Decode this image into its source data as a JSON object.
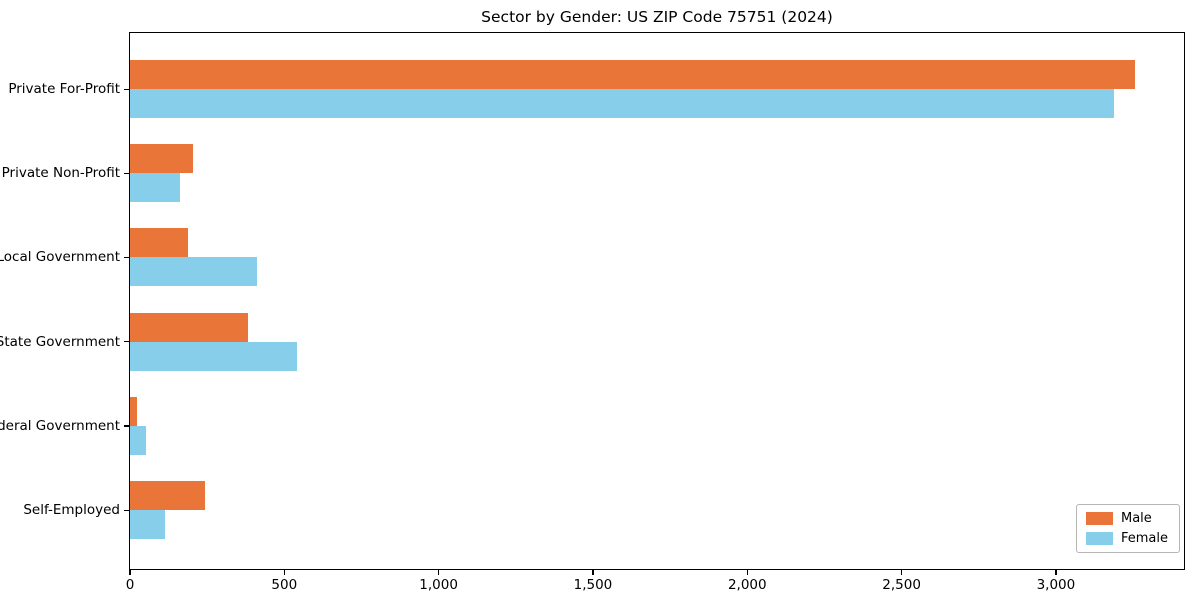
{
  "chart_data": {
    "type": "bar",
    "orientation": "horizontal",
    "title": "Sector by Gender: US ZIP Code 75751 (2024)",
    "categories": [
      "Private For-Profit",
      "Private Non-Profit",
      "Local Government",
      "State Government",
      "Federal Government",
      "Self-Employed"
    ],
    "series": [
      {
        "name": "Male",
        "color": "#E97638",
        "values": [
          3255,
          203,
          187,
          381,
          22,
          242
        ]
      },
      {
        "name": "Female",
        "color": "#87CEEB",
        "values": [
          3188,
          161,
          410,
          542,
          53,
          113
        ]
      }
    ],
    "xlabel": "",
    "ylabel": "",
    "xlim": [
      0,
      3415
    ],
    "xticks": [
      0,
      500,
      1000,
      1500,
      2000,
      2500,
      3000
    ],
    "xtick_labels": [
      "0",
      "500",
      "1,000",
      "1,500",
      "2,000",
      "2,500",
      "3,000"
    ],
    "grid": false,
    "legend_position": "lower right"
  }
}
